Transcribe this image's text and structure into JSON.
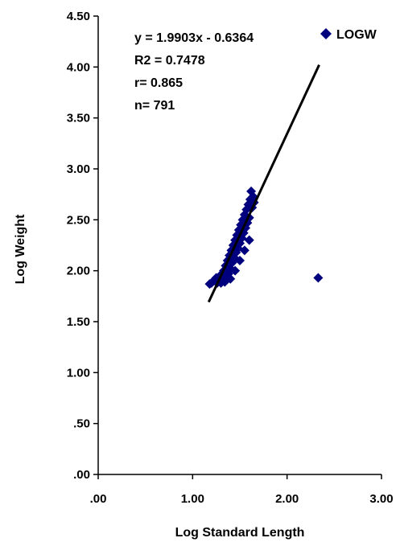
{
  "chart_data": {
    "type": "scatter",
    "xlabel": "Log Standard Length",
    "ylabel": "Log Weight",
    "xlim": [
      0,
      3
    ],
    "ylim": [
      0,
      4.5
    ],
    "x_ticks": [
      ".00",
      "1.00",
      "2.00",
      "3.00"
    ],
    "y_ticks": [
      ".00",
      ".50",
      "1.00",
      "1.50",
      "2.00",
      "2.50",
      "3.00",
      "3.50",
      "4.00",
      "4.50"
    ],
    "legend": {
      "label": "LOGW",
      "position": "top-right"
    },
    "colors": {
      "points": "#00007f",
      "trendline": "#000000"
    },
    "annotations": [
      "y = 1.9903x - 0.6364",
      "R2 = 0.7478",
      "r= 0.865",
      "n= 791"
    ],
    "trendline": {
      "slope": 1.9903,
      "intercept": -0.6364,
      "x_range": [
        1.17,
        2.34
      ]
    },
    "series": [
      {
        "name": "LOGW",
        "points": [
          [
            1.18,
            1.87
          ],
          [
            1.2,
            1.88
          ],
          [
            1.22,
            1.9
          ],
          [
            1.24,
            1.91
          ],
          [
            1.25,
            1.93
          ],
          [
            1.26,
            1.88
          ],
          [
            1.28,
            1.9
          ],
          [
            1.29,
            1.95
          ],
          [
            1.3,
            1.88
          ],
          [
            1.31,
            1.97
          ],
          [
            1.32,
            1.91
          ],
          [
            1.33,
            2.0
          ],
          [
            1.34,
            1.89
          ],
          [
            1.35,
            2.05
          ],
          [
            1.36,
            1.93
          ],
          [
            1.37,
            2.1
          ],
          [
            1.38,
            1.97
          ],
          [
            1.39,
            2.15
          ],
          [
            1.4,
            2.02
          ],
          [
            1.41,
            2.2
          ],
          [
            1.42,
            2.08
          ],
          [
            1.43,
            2.25
          ],
          [
            1.44,
            2.13
          ],
          [
            1.45,
            2.3
          ],
          [
            1.46,
            2.18
          ],
          [
            1.47,
            2.35
          ],
          [
            1.48,
            2.22
          ],
          [
            1.49,
            2.4
          ],
          [
            1.5,
            2.27
          ],
          [
            1.51,
            2.45
          ],
          [
            1.52,
            2.32
          ],
          [
            1.53,
            2.5
          ],
          [
            1.54,
            2.37
          ],
          [
            1.55,
            2.55
          ],
          [
            1.56,
            2.42
          ],
          [
            1.57,
            2.6
          ],
          [
            1.58,
            2.47
          ],
          [
            1.59,
            2.65
          ],
          [
            1.6,
            2.52
          ],
          [
            1.61,
            2.7
          ],
          [
            1.62,
            2.78
          ],
          [
            1.63,
            2.62
          ],
          [
            1.64,
            2.73
          ],
          [
            1.65,
            2.67
          ],
          [
            1.6,
            2.3
          ],
          [
            1.55,
            2.2
          ],
          [
            1.5,
            2.1
          ],
          [
            1.45,
            2.0
          ],
          [
            1.4,
            1.92
          ],
          [
            1.35,
            1.9
          ],
          [
            2.33,
            1.93
          ]
        ]
      }
    ]
  }
}
